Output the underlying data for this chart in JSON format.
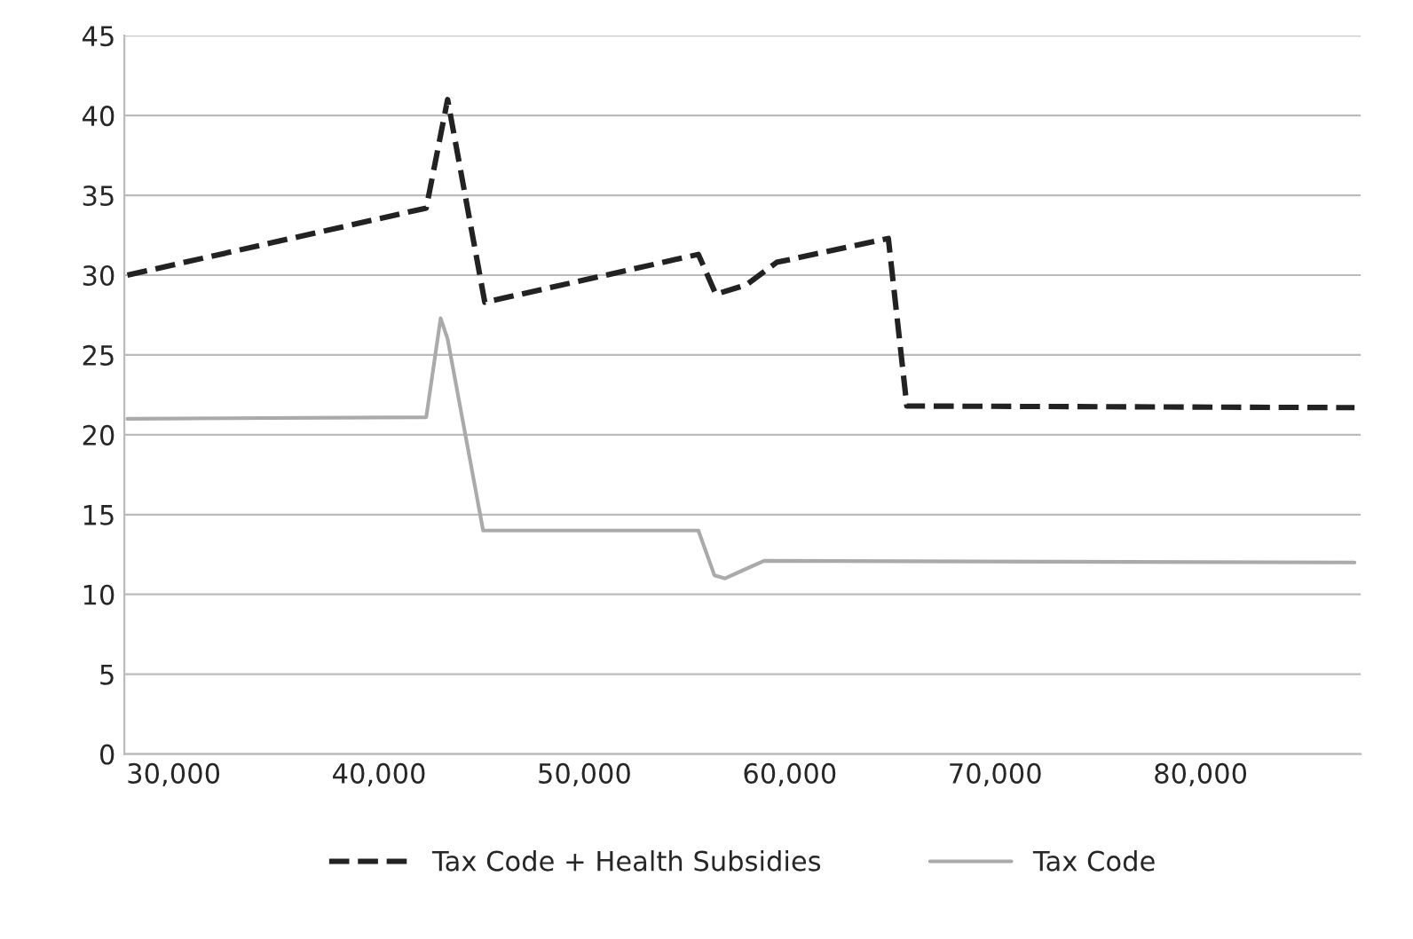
{
  "chart_data": {
    "type": "line",
    "xlim": [
      27600,
      87800
    ],
    "xticks": [
      {
        "value": 30000,
        "label": "30,000"
      },
      {
        "value": 40000,
        "label": "40,000"
      },
      {
        "value": 50000,
        "label": "50,000"
      },
      {
        "value": 60000,
        "label": "60,000"
      },
      {
        "value": 70000,
        "label": "70,000"
      },
      {
        "value": 80000,
        "label": "80,000"
      }
    ],
    "ylim": [
      0,
      45
    ],
    "yticks": [
      0,
      5,
      10,
      15,
      20,
      25,
      30,
      35,
      40,
      45
    ],
    "grid": "y",
    "legend": "bottom",
    "series": [
      {
        "name": "Tax Code + Health Subsidies",
        "color": "#222222",
        "line_style": "dashed",
        "x": [
          27750,
          42300,
          43340,
          45150,
          55550,
          56400,
          57900,
          59360,
          64800,
          65700,
          87500
        ],
        "values": [
          30,
          34.2,
          41,
          28.3,
          31.3,
          28.8,
          29.4,
          30.8,
          32.3,
          21.8,
          21.7
        ]
      },
      {
        "name": "Tax Code",
        "color": "#aaaaaa",
        "line_style": "solid",
        "x": [
          27750,
          42300,
          43000,
          43340,
          45070,
          55550,
          56330,
          56850,
          57700,
          58750,
          87500
        ],
        "values": [
          21,
          21.1,
          27.3,
          26,
          14,
          14,
          11.2,
          11,
          11.5,
          12.1,
          12
        ]
      }
    ]
  }
}
